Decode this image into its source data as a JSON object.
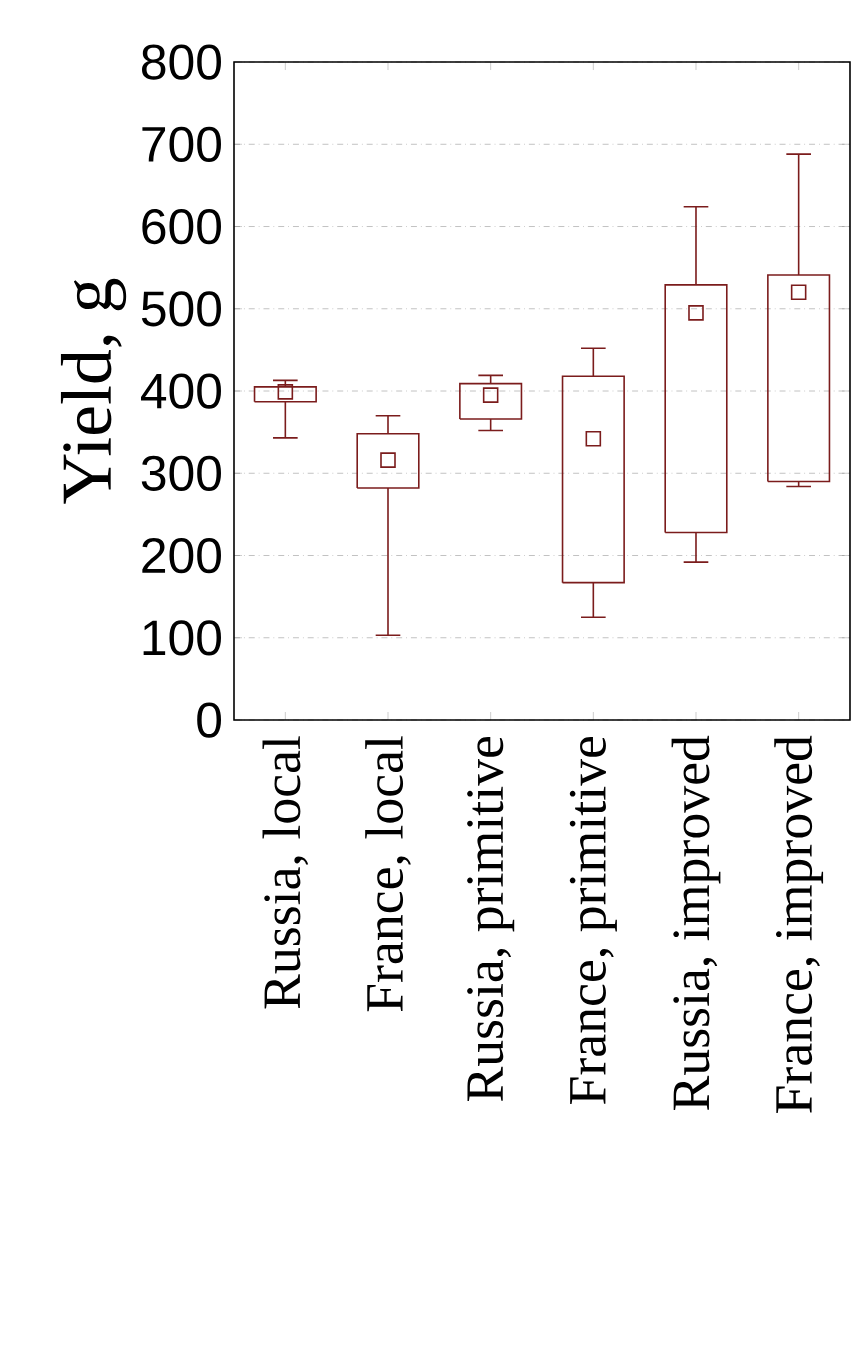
{
  "chart_data": {
    "type": "box",
    "ylabel": "Yield, g",
    "categories": [
      "Russia, local",
      "France, local",
      "Russia, primitive",
      "France, primitive",
      "Russia, improved",
      "France, improved"
    ],
    "boxes": [
      {
        "low": 343,
        "q1": 387,
        "median": 399,
        "q3": 405,
        "high": 413
      },
      {
        "low": 103,
        "q1": 282,
        "median": 316,
        "q3": 348,
        "high": 370
      },
      {
        "low": 352,
        "q1": 366,
        "median": 395,
        "q3": 409,
        "high": 419
      },
      {
        "low": 125,
        "q1": 167,
        "median": 342,
        "q3": 418,
        "high": 452
      },
      {
        "low": 192,
        "q1": 228,
        "median": 495,
        "q3": 529,
        "high": 624
      },
      {
        "low": 284,
        "q1": 290,
        "median": 520,
        "q3": 541,
        "high": 688
      }
    ],
    "color": "#7b1c1c",
    "ylim": [
      0,
      800
    ],
    "yticks": [
      0,
      100,
      200,
      300,
      400,
      500,
      600,
      700,
      800
    ],
    "grid": "y"
  }
}
